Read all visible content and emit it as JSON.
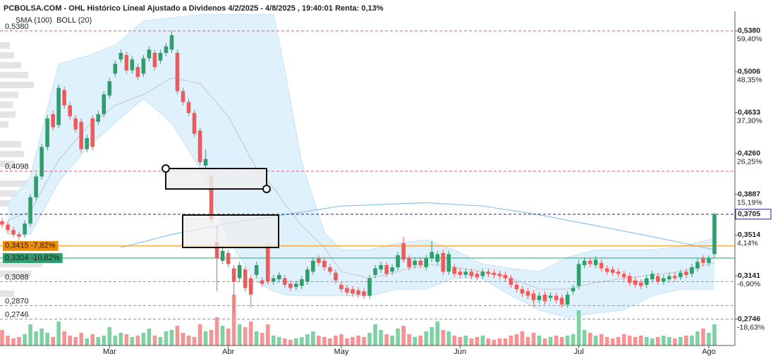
{
  "chart_data": {
    "type": "candlestick",
    "title": "PCBOLSA.COM - OHL Histórico Lineal Ajustado a Dividenos 4/2/2025 - 4/8/2025 , 19:40:01 Renta: 0,13%",
    "indicators": [
      {
        "name": "SMA (100)",
        "color": "#8cc4ec"
      },
      {
        "name": "BOLL (20)",
        "color": "#c4c4c4"
      }
    ],
    "up_color": "#2e9e6a",
    "down_color": "#f05a5a",
    "up_volume_color": "#7fd1a4",
    "down_volume_color": "#f49494",
    "band_color": "#d9eefb",
    "categories": [
      null,
      null,
      null,
      null,
      null,
      null,
      null,
      null,
      null,
      null,
      null,
      null,
      null,
      null,
      null,
      null,
      null,
      null,
      null,
      "Mar",
      null,
      null,
      null,
      null,
      null,
      null,
      null,
      null,
      null,
      null,
      null,
      null,
      null,
      null,
      null,
      null,
      null,
      null,
      null,
      null,
      "Abr",
      null,
      null,
      null,
      null,
      null,
      null,
      null,
      null,
      null,
      null,
      null,
      null,
      null,
      null,
      null,
      null,
      null,
      null,
      null,
      "May",
      null,
      null,
      null,
      null,
      null,
      null,
      null,
      null,
      null,
      null,
      null,
      null,
      null,
      null,
      null,
      null,
      null,
      null,
      null,
      null,
      "Jun",
      null,
      null,
      null,
      null,
      null,
      null,
      null,
      null,
      null,
      null,
      null,
      null,
      null,
      null,
      null,
      null,
      null,
      null,
      null,
      null,
      "Jul",
      null,
      null,
      null,
      null,
      null,
      null,
      null,
      null,
      null,
      null,
      null,
      null,
      null,
      null,
      null,
      null,
      null,
      null,
      null,
      null,
      null,
      null,
      "Ago",
      null
    ],
    "open": [
      0.364,
      0.361,
      0.356,
      0.352,
      0.352,
      0.362,
      0.386,
      0.405,
      0.432,
      0.462,
      0.452,
      0.484,
      0.47,
      0.458,
      0.455,
      0.43,
      0.458,
      0.455,
      0.462,
      0.479,
      0.499,
      0.512,
      0.516,
      0.502,
      0.505,
      0.499,
      0.513,
      0.518,
      0.511,
      0.518,
      0.521,
      0.518,
      0.483,
      0.473,
      0.463,
      0.447,
      0.415,
      0.405,
      0.345,
      0.328,
      0.335,
      0.321,
      0.312,
      0.32,
      0.312,
      0.315,
      0.31,
      0.341,
      0.309,
      0.311,
      0.312,
      0.307,
      0.304,
      0.305,
      0.309,
      0.318,
      0.33,
      0.328,
      0.322,
      0.317,
      0.306,
      0.303,
      0.302,
      0.301,
      0.3,
      0.296,
      0.315,
      0.32,
      0.324,
      0.318,
      0.322,
      0.344,
      0.33,
      0.324,
      0.328,
      0.322,
      0.33,
      0.327,
      0.335,
      0.318,
      0.322,
      0.318,
      0.315,
      0.318,
      0.316,
      0.314,
      0.318,
      0.317,
      0.316,
      0.315,
      0.312,
      0.306,
      0.302,
      0.3,
      0.298,
      0.292,
      0.297,
      0.294,
      0.296,
      0.294,
      0.288,
      0.3,
      0.305,
      0.324,
      0.328,
      0.324,
      0.326,
      0.321,
      0.32,
      0.318,
      0.316,
      0.314,
      0.31,
      0.308,
      0.306,
      0.311,
      0.314,
      0.309,
      0.311,
      0.314,
      0.313,
      0.318,
      0.316,
      0.321,
      0.33,
      0.326,
      0.334
    ],
    "high": [
      0.367,
      0.364,
      0.359,
      0.355,
      0.365,
      0.389,
      0.408,
      0.435,
      0.461,
      0.465,
      0.489,
      0.487,
      0.473,
      0.461,
      0.458,
      0.443,
      0.461,
      0.465,
      0.483,
      0.495,
      0.511,
      0.521,
      0.519,
      0.515,
      0.508,
      0.516,
      0.524,
      0.521,
      0.521,
      0.527,
      0.538,
      0.521,
      0.486,
      0.476,
      0.466,
      0.45,
      0.43,
      0.408,
      0.36,
      0.34,
      0.338,
      0.324,
      0.327,
      0.323,
      0.315,
      0.327,
      0.313,
      0.344,
      0.315,
      0.318,
      0.315,
      0.31,
      0.31,
      0.314,
      0.323,
      0.331,
      0.333,
      0.331,
      0.325,
      0.32,
      0.309,
      0.306,
      0.305,
      0.304,
      0.303,
      0.315,
      0.324,
      0.327,
      0.327,
      0.325,
      0.336,
      0.35,
      0.333,
      0.331,
      0.331,
      0.333,
      0.346,
      0.337,
      0.338,
      0.337,
      0.325,
      0.321,
      0.321,
      0.321,
      0.319,
      0.321,
      0.321,
      0.32,
      0.319,
      0.318,
      0.315,
      0.309,
      0.305,
      0.303,
      0.301,
      0.299,
      0.3,
      0.299,
      0.299,
      0.297,
      0.3,
      0.306,
      0.329,
      0.331,
      0.331,
      0.332,
      0.329,
      0.324,
      0.323,
      0.321,
      0.319,
      0.317,
      0.313,
      0.311,
      0.315,
      0.319,
      0.317,
      0.315,
      0.317,
      0.317,
      0.32,
      0.321,
      0.325,
      0.33,
      0.333,
      0.333,
      0.372
    ],
    "low": [
      0.358,
      0.353,
      0.349,
      0.347,
      0.349,
      0.359,
      0.383,
      0.402,
      0.429,
      0.447,
      0.449,
      0.467,
      0.457,
      0.445,
      0.427,
      0.427,
      0.429,
      0.452,
      0.459,
      0.476,
      0.496,
      0.509,
      0.499,
      0.499,
      0.493,
      0.496,
      0.51,
      0.502,
      0.508,
      0.515,
      0.518,
      0.48,
      0.47,
      0.46,
      0.441,
      0.415,
      0.412,
      0.363,
      0.3,
      0.325,
      0.322,
      0.28,
      0.309,
      0.3,
      0.285,
      0.312,
      0.304,
      0.306,
      0.306,
      0.308,
      0.303,
      0.3,
      0.301,
      0.302,
      0.306,
      0.315,
      0.323,
      0.319,
      0.315,
      0.307,
      0.299,
      0.296,
      0.295,
      0.294,
      0.293,
      0.293,
      0.312,
      0.317,
      0.313,
      0.315,
      0.319,
      0.326,
      0.319,
      0.321,
      0.321,
      0.319,
      0.327,
      0.324,
      0.315,
      0.315,
      0.313,
      0.312,
      0.312,
      0.311,
      0.31,
      0.311,
      0.313,
      0.312,
      0.311,
      0.309,
      0.303,
      0.299,
      0.295,
      0.293,
      0.286,
      0.289,
      0.288,
      0.291,
      0.289,
      0.285,
      0.285,
      0.297,
      0.302,
      0.321,
      0.322,
      0.321,
      0.318,
      0.315,
      0.314,
      0.313,
      0.31,
      0.305,
      0.303,
      0.302,
      0.303,
      0.308,
      0.306,
      0.306,
      0.308,
      0.309,
      0.31,
      0.312,
      0.313,
      0.318,
      0.323,
      0.323,
      0.331
    ],
    "close": [
      0.361,
      0.356,
      0.352,
      0.35,
      0.362,
      0.386,
      0.405,
      0.432,
      0.458,
      0.45,
      0.486,
      0.47,
      0.46,
      0.448,
      0.43,
      0.44,
      0.432,
      0.462,
      0.48,
      0.492,
      0.508,
      0.518,
      0.502,
      0.512,
      0.496,
      0.513,
      0.521,
      0.505,
      0.518,
      0.524,
      0.534,
      0.483,
      0.473,
      0.463,
      0.444,
      0.418,
      0.421,
      0.366,
      0.33,
      0.337,
      0.325,
      0.309,
      0.324,
      0.303,
      0.297,
      0.324,
      0.307,
      0.309,
      0.312,
      0.315,
      0.306,
      0.303,
      0.307,
      0.311,
      0.32,
      0.328,
      0.326,
      0.322,
      0.318,
      0.31,
      0.302,
      0.299,
      0.298,
      0.297,
      0.296,
      0.312,
      0.321,
      0.324,
      0.316,
      0.322,
      0.333,
      0.329,
      0.322,
      0.328,
      0.324,
      0.33,
      0.336,
      0.334,
      0.318,
      0.334,
      0.316,
      0.315,
      0.318,
      0.314,
      0.313,
      0.318,
      0.316,
      0.315,
      0.314,
      0.312,
      0.306,
      0.302,
      0.298,
      0.296,
      0.292,
      0.296,
      0.291,
      0.296,
      0.292,
      0.288,
      0.297,
      0.303,
      0.325,
      0.328,
      0.325,
      0.329,
      0.321,
      0.318,
      0.317,
      0.316,
      0.313,
      0.308,
      0.306,
      0.305,
      0.312,
      0.316,
      0.309,
      0.312,
      0.314,
      0.312,
      0.317,
      0.315,
      0.322,
      0.327,
      0.326,
      0.33,
      0.3705
    ],
    "volume": [
      22,
      14,
      10,
      12,
      16,
      30,
      20,
      24,
      18,
      12,
      34,
      20,
      14,
      12,
      18,
      10,
      16,
      12,
      14,
      26,
      14,
      18,
      16,
      12,
      14,
      18,
      24,
      14,
      12,
      20,
      22,
      28,
      18,
      14,
      12,
      30,
      20,
      22,
      40,
      28,
      24,
      72,
      30,
      26,
      34,
      20,
      18,
      30,
      14,
      12,
      10,
      8,
      10,
      12,
      16,
      20,
      14,
      12,
      10,
      14,
      16,
      10,
      12,
      14,
      12,
      18,
      30,
      22,
      16,
      14,
      24,
      28,
      16,
      12,
      14,
      20,
      26,
      34,
      22,
      20,
      14,
      12,
      14,
      10,
      12,
      14,
      10,
      8,
      10,
      10,
      14,
      16,
      20,
      12,
      18,
      14,
      10,
      12,
      14,
      12,
      14,
      16,
      50,
      22,
      18,
      14,
      16,
      12,
      10,
      12,
      16,
      14,
      12,
      14,
      12,
      10,
      12,
      14,
      12,
      10,
      12,
      14,
      14,
      20,
      24,
      18,
      30
    ],
    "bollinger": {
      "x": [
        1,
        5,
        10,
        15,
        20,
        25,
        30,
        35,
        40,
        45,
        48,
        50,
        53,
        57,
        60,
        65,
        70,
        75,
        80,
        85,
        90,
        95,
        100,
        105,
        110,
        115,
        120,
        125,
        126
      ],
      "upper": [
        0.38,
        0.405,
        0.508,
        0.515,
        0.525,
        0.547,
        0.55,
        0.553,
        0.553,
        0.553,
        0.553,
        0.502,
        0.418,
        0.354,
        0.338,
        0.338,
        0.344,
        0.347,
        0.338,
        0.325,
        0.321,
        0.318,
        0.331,
        0.338,
        0.338,
        0.338,
        0.341,
        0.347,
        0.35
      ],
      "mid": [
        0.365,
        0.373,
        0.42,
        0.45,
        0.47,
        0.48,
        0.495,
        0.49,
        0.46,
        0.412,
        0.395,
        0.38,
        0.36,
        0.34,
        0.318,
        0.312,
        0.318,
        0.325,
        0.322,
        0.318,
        0.312,
        0.302,
        0.302,
        0.308,
        0.312,
        0.315,
        0.318,
        0.325,
        0.326
      ],
      "lower": [
        0.352,
        0.352,
        0.4,
        0.431,
        0.454,
        0.476,
        0.454,
        0.412,
        0.347,
        0.309,
        0.3,
        0.297,
        0.296,
        0.296,
        0.296,
        0.296,
        0.302,
        0.302,
        0.312,
        0.312,
        0.296,
        0.283,
        0.276,
        0.28,
        0.283,
        0.296,
        0.302,
        0.302,
        0.302
      ]
    },
    "sma": {
      "x": [
        21,
        30,
        40,
        50,
        60,
        75,
        85,
        95,
        105,
        115,
        126
      ],
      "values": [
        0.34,
        0.352,
        0.362,
        0.37,
        0.378,
        0.381,
        0.378,
        0.37,
        0.36,
        0.35,
        0.338
      ]
    },
    "ylim": [
      0.2505,
      0.556
    ],
    "yticks": [
      {
        "value": 0.538,
        "label": "0,5380"
      },
      {
        "value": 0.5006,
        "label": "0,5006"
      },
      {
        "value": 0.4633,
        "label": "0,4633"
      },
      {
        "value": 0.426,
        "label": "0,4260"
      },
      {
        "value": 0.3887,
        "label": "0,3887"
      },
      {
        "value": 0.3514,
        "label": "0,3514"
      },
      {
        "value": 0.3141,
        "label": "0,3141"
      },
      {
        "value": 0.2746,
        "label": "0,2746"
      }
    ],
    "percent_labels": [
      "59,40%",
      "48,35%",
      "37,30%",
      "26,25%",
      "15,19%",
      "4,14%",
      "-6,90%",
      "-18,63%"
    ],
    "levels": [
      {
        "value": 0.538,
        "label": "0,5380",
        "color": "#e06060",
        "dash": true
      },
      {
        "value": 0.4098,
        "label": "0,4098",
        "color": "#e06060",
        "dash": true
      },
      {
        "value": 0.3705,
        "label": "0,3705",
        "color": "#1a237e",
        "dash": true,
        "side": "right"
      },
      {
        "value": 0.3415,
        "label": "0,3415 -7,82%",
        "color": "#f08c00",
        "dash": false,
        "box": true
      },
      {
        "value": 0.3304,
        "label": "0,3304 -10,82%",
        "color": "#2e9e6e",
        "dash": false,
        "box": true
      },
      {
        "value": 0.3088,
        "label": "0,3088",
        "color": "#8a9a96",
        "dash": true
      },
      {
        "value": 0.287,
        "label": "0,2870",
        "color": "#8a9a96",
        "dash": true
      },
      {
        "value": 0.2746,
        "label": "0,2746",
        "color": "#8a9a96",
        "dash": true
      }
    ]
  }
}
